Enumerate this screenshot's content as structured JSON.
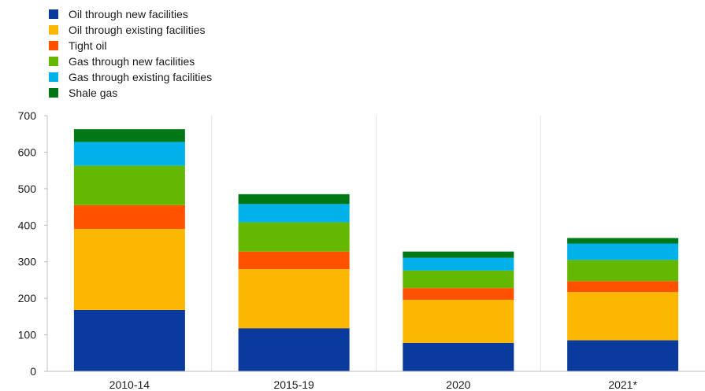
{
  "chart_data": {
    "type": "bar",
    "stacked": true,
    "categories": [
      "2010-14",
      "2015-19",
      "2020",
      "2021*"
    ],
    "series": [
      {
        "name": "Oil through new facilities",
        "color": "#0a3a9c",
        "values": [
          168,
          118,
          78,
          85
        ]
      },
      {
        "name": "Oil through existing facilities",
        "color": "#fcb800",
        "values": [
          222,
          162,
          118,
          132
        ]
      },
      {
        "name": "Tight oil",
        "color": "#ff5100",
        "values": [
          65,
          48,
          32,
          30
        ]
      },
      {
        "name": "Gas through new facilities",
        "color": "#65b800",
        "values": [
          108,
          80,
          48,
          58
        ]
      },
      {
        "name": "Gas through existing facilities",
        "color": "#00b1ea",
        "values": [
          65,
          50,
          35,
          45
        ]
      },
      {
        "name": "Shale gas",
        "color": "#007816",
        "values": [
          35,
          27,
          17,
          15
        ]
      }
    ],
    "yticks": [
      "0",
      "100",
      "200",
      "300",
      "400",
      "500",
      "600",
      "700"
    ],
    "ylim": [
      0,
      700
    ],
    "legend": "top-left",
    "grid": "vertical"
  }
}
